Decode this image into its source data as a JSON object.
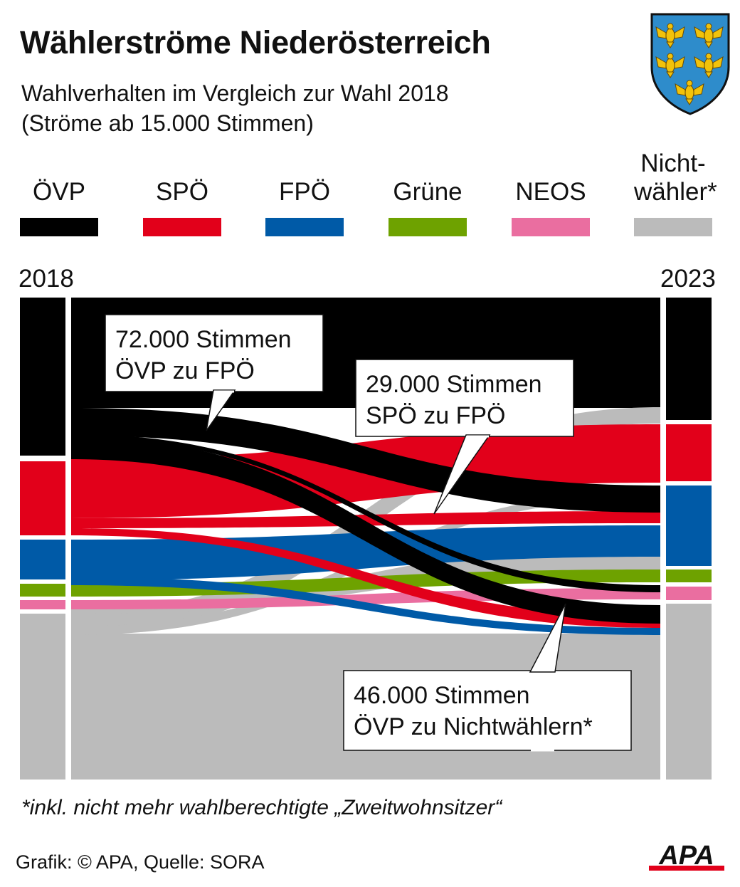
{
  "header": {
    "title": "Wählerströme Niederösterreich",
    "subtitle_line1": "Wahlverhalten im Vergleich zur Wahl 2018",
    "subtitle_line2": "(Ströme ab 15.000 Stimmen)"
  },
  "crest_icon": "lower-austria-coat-of-arms-icon",
  "legend": [
    {
      "label": "ÖVP",
      "color": "#000000"
    },
    {
      "label": "SPÖ",
      "color": "#e2001a"
    },
    {
      "label": "FPÖ",
      "color": "#005aa7"
    },
    {
      "label": "Grüne",
      "color": "#6ea200"
    },
    {
      "label": "NEOS",
      "color": "#ea6ea0"
    },
    {
      "label": "Nicht-\nwähler*",
      "color": "#bbbbbb"
    }
  ],
  "years": {
    "left": "2018",
    "right": "2023"
  },
  "chart_data": {
    "type": "sankey",
    "title": "Wählerströme Niederösterreich",
    "subtitle": "Wahlverhalten im Vergleich zur Wahl 2018 (Ströme ab 15.000 Stimmen)",
    "source_year": "2018",
    "target_year": "2023",
    "parties": [
      "ÖVP",
      "SPÖ",
      "FPÖ",
      "Grüne",
      "NEOS",
      "Nichtwähler*"
    ],
    "highlighted_flows": [
      {
        "from": "ÖVP",
        "to": "FPÖ",
        "votes": 72000
      },
      {
        "from": "SPÖ",
        "to": "FPÖ",
        "votes": 29000
      },
      {
        "from": "ÖVP",
        "to": "Nichtwähler*",
        "votes": 46000
      }
    ],
    "callouts": [
      {
        "line1": "72.000 Stimmen",
        "line2": "ÖVP zu FPÖ"
      },
      {
        "line1": "29.000 Stimmen",
        "line2": "SPÖ zu FPÖ"
      },
      {
        "line1": "46.000 Stimmen",
        "line2": "ÖVP zu Nichtwählern*"
      }
    ]
  },
  "footnote": "*inkl. nicht mehr wahlberechtigte „Zweitwohnsitzer“",
  "source": "Grafik: © APA, Quelle: SORA",
  "logo_text": "APA",
  "logo_icon": "apa-logo-icon"
}
